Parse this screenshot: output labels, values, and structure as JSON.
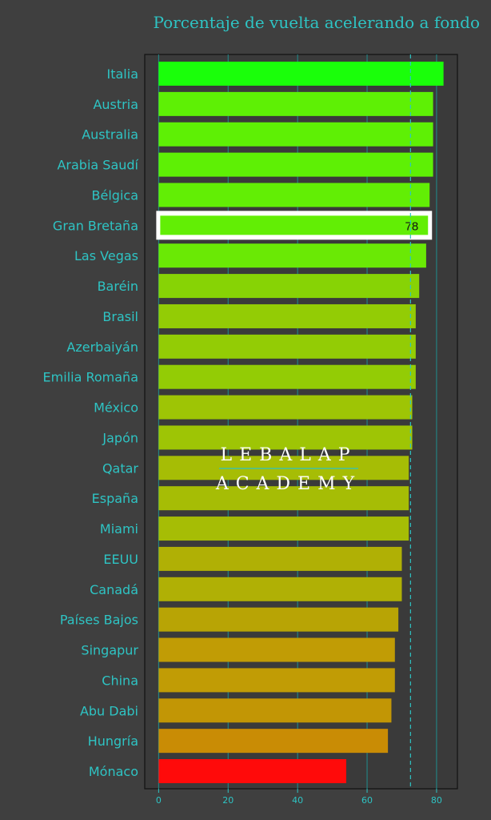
{
  "chart_data": {
    "type": "bar",
    "orientation": "horizontal",
    "title": "Porcentaje de vuelta acelerando a fondo",
    "categories": [
      "Italia",
      "Austria",
      "Australia",
      "Arabia Saudí",
      "Bélgica",
      "Gran Bretaña",
      "Las Vegas",
      "Baréin",
      "Brasil",
      "Azerbaiyán",
      "Emilia Romaña",
      "México",
      "Japón",
      "Qatar",
      "España",
      "Miami",
      "EEUU",
      "Canadá",
      "Países Bajos",
      "Singapur",
      "China",
      "Abu Dabi",
      "Hungría",
      "Mónaco"
    ],
    "values": [
      82,
      79,
      79,
      79,
      78,
      78,
      77,
      75,
      74,
      74,
      74,
      73,
      73,
      72,
      72,
      72,
      70,
      70,
      69,
      68,
      68,
      67,
      66,
      54
    ],
    "colors": [
      "#1aff0a",
      "#5ef005",
      "#5ef005",
      "#5ef005",
      "#62ee05",
      "#62ee05",
      "#6ae905",
      "#87d305",
      "#93cc05",
      "#93cc05",
      "#93cc05",
      "#9ec505",
      "#9ec505",
      "#a6bd05",
      "#a6bd05",
      "#a6bd05",
      "#b0b005",
      "#b0b005",
      "#b8a405",
      "#c19c05",
      "#c19c05",
      "#c29605",
      "#c98c05",
      "#ff0a0a"
    ],
    "highlight": {
      "category": "Gran Bretaña",
      "label": "78"
    },
    "xlim": [
      -4,
      86
    ],
    "xticks": [
      0,
      20,
      40,
      60,
      80
    ],
    "reference_line": 72.5,
    "grid": true,
    "watermark": [
      "LEBALAP",
      "ACADEMY"
    ]
  }
}
